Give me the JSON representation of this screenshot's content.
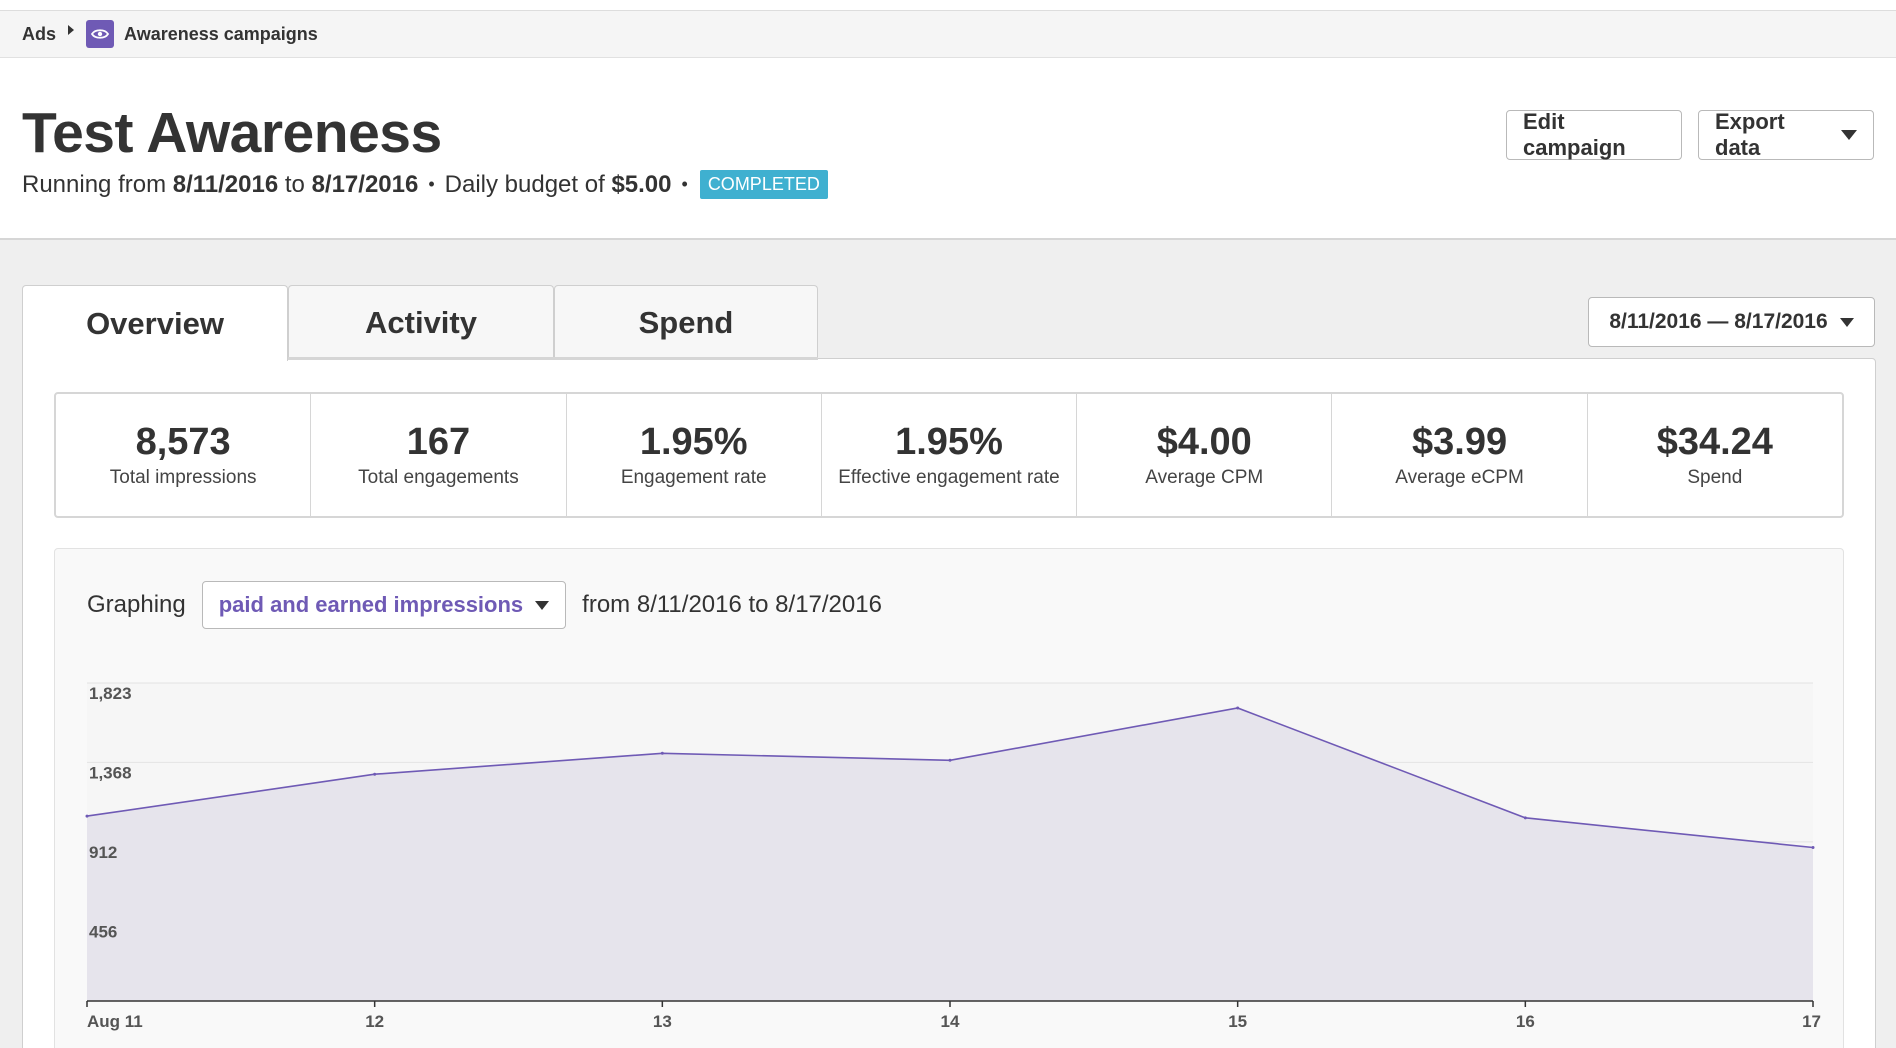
{
  "breadcrumb": {
    "root": "Ads",
    "current": "Awareness campaigns",
    "icon": "eye-icon"
  },
  "campaign": {
    "title": "Test Awareness",
    "running_prefix": "Running from",
    "start_date": "8/11/2016",
    "to_word": "to",
    "end_date": "8/17/2016",
    "budget_prefix": "Daily budget of",
    "budget": "$5.00",
    "status": "COMPLETED"
  },
  "actions": {
    "edit_label": "Edit campaign",
    "export_label": "Export data"
  },
  "tabs": [
    {
      "label": "Overview",
      "active": true
    },
    {
      "label": "Activity",
      "active": false
    },
    {
      "label": "Spend",
      "active": false
    }
  ],
  "date_range": "8/11/2016 — 8/17/2016",
  "stats": [
    {
      "value": "8,573",
      "label": "Total impressions"
    },
    {
      "value": "167",
      "label": "Total engagements"
    },
    {
      "value": "1.95%",
      "label": "Engagement rate"
    },
    {
      "value": "1.95%",
      "label": "Effective engagement rate"
    },
    {
      "value": "$4.00",
      "label": "Average CPM"
    },
    {
      "value": "$3.99",
      "label": "Average eCPM"
    },
    {
      "value": "$34.24",
      "label": "Spend"
    }
  ],
  "graph": {
    "graphing_label": "Graphing",
    "metric": "paid and earned impressions",
    "range_text": "from 8/11/2016 to 8/17/2016"
  },
  "colors": {
    "accent": "#6f5ab5",
    "area_fill": "#e6e4ec",
    "status_badge": "#3fb0d0"
  },
  "chart_data": {
    "type": "area",
    "categories": [
      "Aug 11",
      "12",
      "13",
      "14",
      "15",
      "16",
      "17"
    ],
    "values": [
      1060,
      1300,
      1420,
      1380,
      1680,
      1050,
      880
    ],
    "yticks": [
      "1,823",
      "1,368",
      "912",
      "456"
    ],
    "ytick_values": [
      1823,
      1368,
      912,
      456
    ],
    "ylim": [
      0,
      1823
    ],
    "grid": true
  }
}
